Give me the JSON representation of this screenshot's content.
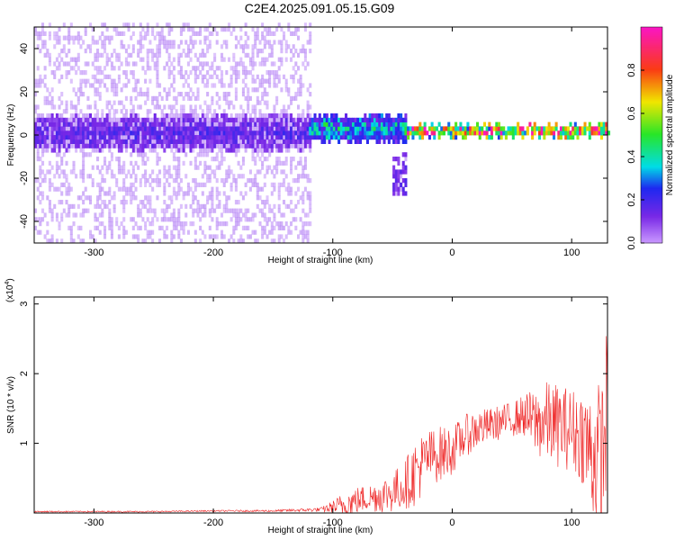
{
  "title": "C2E4.2025.091.05.15.G09",
  "chart_data": [
    {
      "type": "heatmap",
      "xlabel": "Height of straight line (km)",
      "ylabel": "Frequency (Hz)",
      "xlim": [
        -350,
        130
      ],
      "ylim": [
        -50,
        50
      ],
      "xticks": [
        -300,
        -200,
        -100,
        0,
        100
      ],
      "yticks": [
        -40,
        -20,
        0,
        20,
        40
      ],
      "colorbar": {
        "label": "Normalized spectral amplitude",
        "range": [
          0,
          1
        ],
        "ticks": [
          0.0,
          0.2,
          0.4,
          0.6,
          0.8
        ],
        "tick_labels": [
          "0.0",
          "0.2",
          "0.4",
          "0.6",
          "0.8"
        ],
        "colormap": "purple-blue-cyan-green-yellow-red-magenta"
      },
      "features": [
        {
          "x_range": [
            -350,
            -120
          ],
          "freq_center": 0,
          "freq_halfwidth": 8,
          "amplitude": 0.15,
          "scatter_halfwidth": 50,
          "scatter_amplitude": 0.05
        },
        {
          "x_range": [
            -120,
            -40
          ],
          "freq_center": 2,
          "freq_halfwidth": 6,
          "amplitude": 0.35,
          "tail": {
            "x_range": [
              -50,
              -30
            ],
            "freq_range": [
              -28,
              -10
            ]
          }
        },
        {
          "x_range": [
            -40,
            130
          ],
          "freq_center": 1,
          "freq_halfwidth": 2.5,
          "amplitude": 0.8
        }
      ]
    },
    {
      "type": "line",
      "xlabel": "Height of straight line (km)",
      "ylabel": "SNR (10 * v/v)",
      "scale_note": "(x10",
      "scale_exponent": "4",
      "xlim": [
        -350,
        130
      ],
      "ylim": [
        0,
        3.1
      ],
      "xticks": [
        -300,
        -200,
        -100,
        0,
        100
      ],
      "yticks": [
        1,
        2,
        3
      ],
      "color": "#ee2222",
      "series": [
        {
          "x": [
            -350,
            -300,
            -250,
            -200,
            -150,
            -110,
            -100,
            -90,
            -80,
            -70,
            -60,
            -50,
            -40,
            -30,
            -20,
            -10,
            0,
            10,
            20,
            30,
            40,
            50,
            60,
            70,
            80,
            90,
            100,
            110,
            115,
            120,
            125,
            130
          ],
          "y": [
            0.02,
            0.02,
            0.02,
            0.03,
            0.03,
            0.05,
            0.08,
            0.12,
            0.18,
            0.22,
            0.25,
            0.3,
            0.4,
            0.6,
            0.8,
            0.85,
            0.9,
            1.1,
            1.2,
            1.25,
            1.3,
            1.35,
            1.4,
            1.3,
            1.3,
            1.25,
            1.2,
            1.1,
            0.9,
            0.8,
            0.7,
            1.6
          ],
          "spread": [
            0.01,
            0.01,
            0.01,
            0.01,
            0.015,
            0.03,
            0.1,
            0.2,
            0.2,
            0.2,
            0.25,
            0.3,
            0.35,
            0.5,
            0.4,
            0.4,
            0.35,
            0.3,
            0.3,
            0.25,
            0.25,
            0.25,
            0.3,
            0.5,
            0.6,
            0.6,
            0.6,
            0.7,
            0.9,
            1.1,
            1.2,
            1.2
          ]
        }
      ]
    }
  ]
}
